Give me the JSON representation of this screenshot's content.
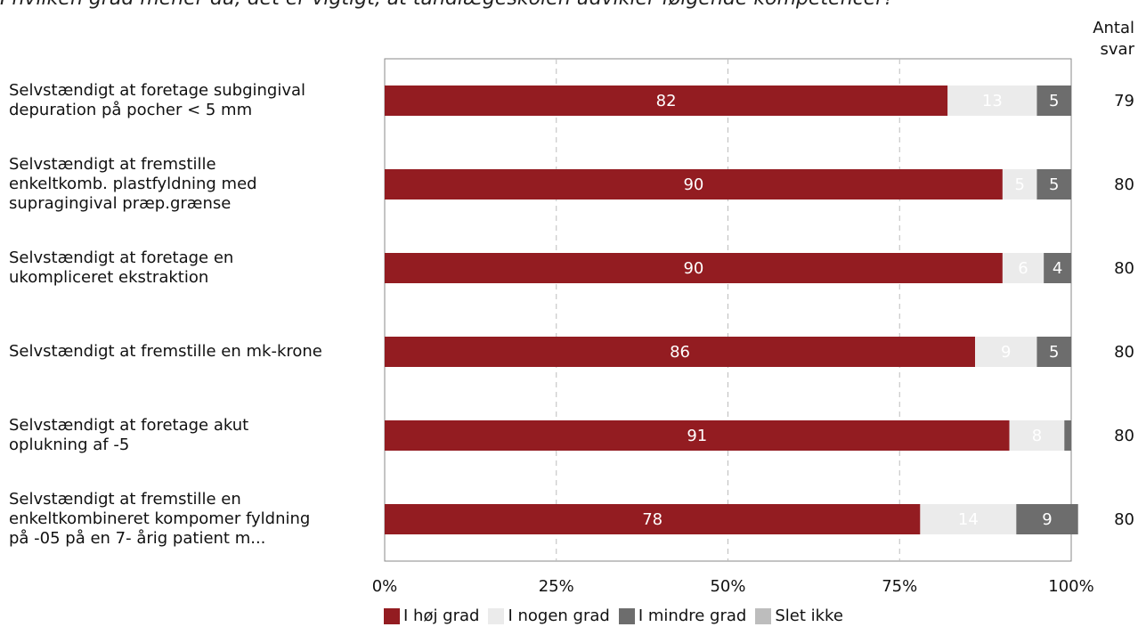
{
  "title": "I hvilken grad mener du, det er vigtigt, at tandlægeskolen udvikler følgende kompetencer?",
  "antal_header": [
    "Antal",
    "svar"
  ],
  "chart_data": {
    "type": "bar",
    "orientation": "horizontal",
    "stacked": true,
    "categories": [
      [
        "Selvstændigt at foretage subgingival",
        "depuration på pocher < 5 mm"
      ],
      [
        "Selvstændigt at fremstille",
        "enkeltkomb. plastfyldning med",
        "supragingival præp.grænse"
      ],
      [
        "Selvstændigt at foretage en",
        "ukompliceret ekstraktion"
      ],
      [
        "Selvstændigt at fremstille en mk-krone"
      ],
      [
        "Selvstændigt at foretage akut",
        "oplukning af -5"
      ],
      [
        "Selvstændigt at fremstille en",
        "enkeltkombineret kompomer fyldning",
        "på -05 på en 7- årig patient m..."
      ]
    ],
    "series": [
      {
        "name": "I høj grad",
        "color": "#931c21",
        "label_color": "#ffffff",
        "values": [
          82,
          90,
          90,
          86,
          91,
          78
        ]
      },
      {
        "name": "I nogen grad",
        "color": "#ebebeb",
        "label_color": "#ffffff",
        "values": [
          13,
          5,
          6,
          9,
          8,
          14
        ]
      },
      {
        "name": "I mindre grad",
        "color": "#6d6d6d",
        "label_color": "#ffffff",
        "values": [
          5,
          5,
          4,
          5,
          1,
          9
        ]
      },
      {
        "name": "Slet ikke",
        "color": "#bdbdbd",
        "label_color": "#ffffff",
        "values": [
          0,
          0,
          0,
          0,
          0,
          0
        ]
      }
    ],
    "hidden_labels": [
      [],
      [],
      [],
      [],
      [
        "I mindre grad"
      ],
      []
    ],
    "antal_svar": [
      79,
      80,
      80,
      80,
      80,
      80
    ],
    "xlim": [
      0,
      100
    ],
    "x_ticks": [
      "0%",
      "25%",
      "50%",
      "75%",
      "100%"
    ],
    "x_tick_values": [
      0,
      25,
      50,
      75,
      100
    ],
    "grid": true,
    "grid_style": "dashed",
    "legend_position": "bottom"
  }
}
